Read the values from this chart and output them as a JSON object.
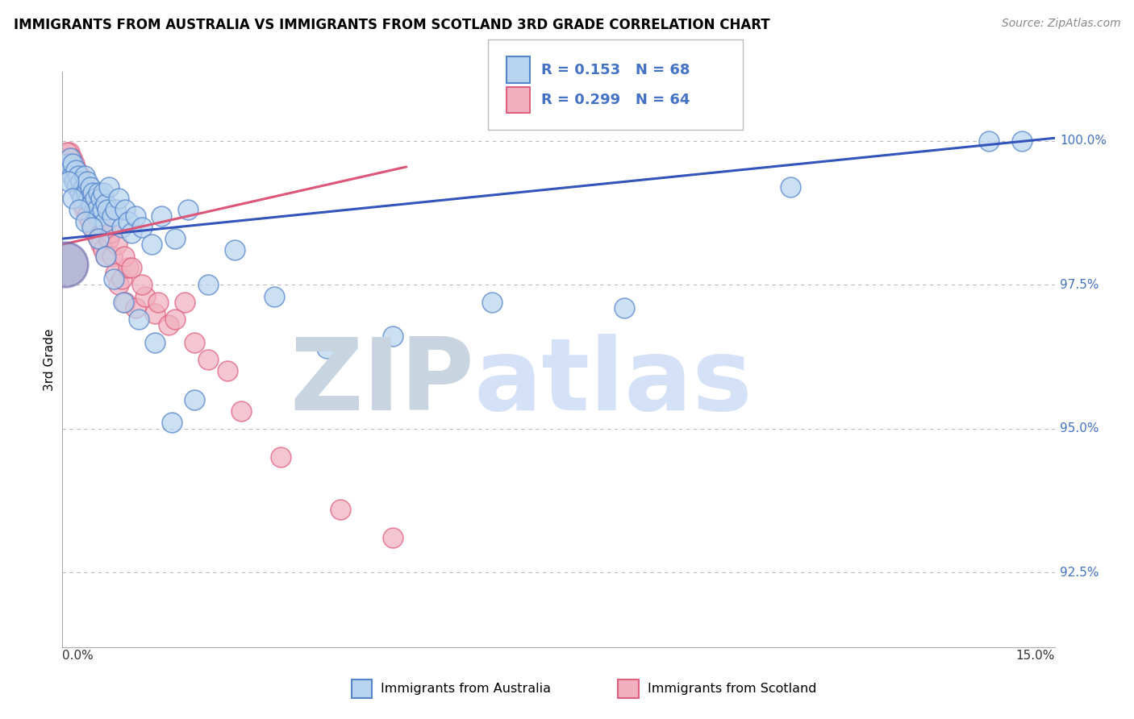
{
  "title": "IMMIGRANTS FROM AUSTRALIA VS IMMIGRANTS FROM SCOTLAND 3RD GRADE CORRELATION CHART",
  "source": "Source: ZipAtlas.com",
  "ylabel": "3rd Grade",
  "y_ticks": [
    92.5,
    95.0,
    97.5,
    100.0
  ],
  "y_tick_labels": [
    "92.5%",
    "95.0%",
    "97.5%",
    "100.0%"
  ],
  "xmin": 0.0,
  "xmax": 15.0,
  "ymin": 91.2,
  "ymax": 101.2,
  "R_australia": 0.153,
  "N_australia": 68,
  "R_scotland": 0.299,
  "N_scotland": 64,
  "color_australia_fill": "#b8d4ee",
  "color_scotland_fill": "#f0b0c0",
  "color_australia_edge": "#5585cc",
  "color_scotland_edge": "#e06080",
  "color_australia_line": "#3355bb",
  "color_scotland_line": "#dd5577",
  "color_legend_text": "#4472c4",
  "watermark_zip_color": "#d0dce8",
  "watermark_atlas_color": "#c8d8f0",
  "big_dot_color": "#8888bb",
  "big_dot_edge": "#6666aa",
  "aus_line_y0": 98.3,
  "aus_line_y1": 100.05,
  "sco_line_y0": 98.2,
  "sco_line_y1": 99.55,
  "sco_line_x1": 5.2,
  "australia_x": [
    0.08,
    0.1,
    0.12,
    0.14,
    0.16,
    0.18,
    0.2,
    0.22,
    0.24,
    0.26,
    0.28,
    0.3,
    0.32,
    0.34,
    0.36,
    0.38,
    0.4,
    0.42,
    0.44,
    0.46,
    0.48,
    0.5,
    0.52,
    0.54,
    0.56,
    0.58,
    0.6,
    0.62,
    0.64,
    0.66,
    0.68,
    0.7,
    0.75,
    0.8,
    0.85,
    0.9,
    0.95,
    1.0,
    1.05,
    1.1,
    1.2,
    1.35,
    1.5,
    1.7,
    1.9,
    2.2,
    2.6,
    3.2,
    4.0,
    5.0,
    6.5,
    8.5,
    11.0,
    14.0,
    14.5,
    0.09,
    0.15,
    0.25,
    0.35,
    0.45,
    0.55,
    0.65,
    0.78,
    0.92,
    1.15,
    1.4,
    1.65,
    2.0
  ],
  "australia_y": [
    99.6,
    99.5,
    99.7,
    99.4,
    99.6,
    99.3,
    99.5,
    99.2,
    99.4,
    99.1,
    99.3,
    99.0,
    99.2,
    99.4,
    99.1,
    99.3,
    99.0,
    99.2,
    98.9,
    99.1,
    98.8,
    99.0,
    98.8,
    99.1,
    98.7,
    99.0,
    98.8,
    99.1,
    98.6,
    98.9,
    98.8,
    99.2,
    98.7,
    98.8,
    99.0,
    98.5,
    98.8,
    98.6,
    98.4,
    98.7,
    98.5,
    98.2,
    98.7,
    98.3,
    98.8,
    97.5,
    98.1,
    97.3,
    96.4,
    96.6,
    97.2,
    97.1,
    99.2,
    100.0,
    100.0,
    99.3,
    99.0,
    98.8,
    98.6,
    98.5,
    98.3,
    98.0,
    97.6,
    97.2,
    96.9,
    96.5,
    95.1,
    95.5
  ],
  "scotland_x": [
    0.06,
    0.08,
    0.1,
    0.12,
    0.14,
    0.16,
    0.18,
    0.2,
    0.22,
    0.24,
    0.26,
    0.28,
    0.3,
    0.32,
    0.34,
    0.36,
    0.38,
    0.4,
    0.42,
    0.44,
    0.46,
    0.48,
    0.5,
    0.52,
    0.54,
    0.56,
    0.58,
    0.6,
    0.62,
    0.64,
    0.66,
    0.7,
    0.75,
    0.8,
    0.85,
    0.9,
    0.95,
    1.0,
    1.1,
    1.25,
    1.4,
    1.6,
    1.85,
    2.2,
    2.7,
    3.3,
    4.2,
    5.0,
    0.07,
    0.13,
    0.23,
    0.33,
    0.43,
    0.53,
    0.63,
    0.73,
    0.83,
    0.93,
    1.05,
    1.2,
    1.45,
    1.7,
    2.0,
    2.5
  ],
  "scotland_y": [
    99.7,
    99.6,
    99.8,
    99.5,
    99.7,
    99.4,
    99.6,
    99.3,
    99.5,
    99.2,
    99.4,
    99.2,
    98.9,
    99.2,
    98.8,
    99.1,
    98.7,
    99.0,
    98.6,
    98.9,
    98.5,
    98.8,
    98.4,
    98.7,
    98.3,
    98.6,
    98.2,
    98.5,
    98.1,
    98.5,
    98.0,
    98.3,
    98.0,
    97.7,
    97.5,
    97.6,
    97.2,
    97.8,
    97.1,
    97.3,
    97.0,
    96.8,
    97.2,
    96.2,
    95.3,
    94.5,
    93.6,
    93.1,
    99.8,
    99.6,
    99.4,
    99.2,
    99.0,
    98.8,
    98.6,
    98.4,
    98.2,
    98.0,
    97.8,
    97.5,
    97.2,
    96.9,
    96.5,
    96.0
  ]
}
